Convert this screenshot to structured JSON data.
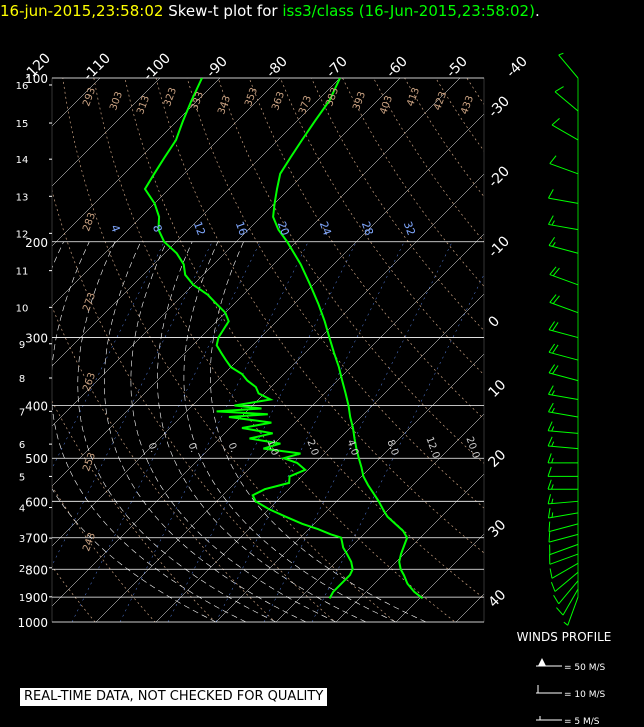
{
  "title": {
    "datetime": "16-jun-2015,23:58:02",
    "plot_label": "Skew-t plot for",
    "source": "iss3/class (16-Jun-2015,23:58:02)",
    "trailing": "."
  },
  "colors": {
    "background": "#000000",
    "title_datetime": "#ffff00",
    "title_source": "#00ff00",
    "temperature_trace": "#00ff00",
    "dewpoint_trace": "#00ff00",
    "wind_barbs": "#00ff00",
    "isobars": "#ffffff",
    "isotherms": "#ffffff",
    "dry_adiabats": "#c8a080",
    "moist_adiabats": "#ffffff",
    "mixing_ratio_lines": "#6090ff",
    "mixing_ratio_labels": "#80a8ff",
    "notice_bg": "#ffffff",
    "notice_fg": "#000000"
  },
  "notice": "REAL-TIME DATA, NOT CHECKED FOR QUALITY",
  "winds_legend": {
    "title": "WINDS PROFILE",
    "entries": [
      {
        "label": "= 50 M/S",
        "icon": "pennant-barb-icon"
      },
      {
        "label": "= 10 M/S",
        "icon": "full-barb-icon"
      },
      {
        "label": "= 5 M/S",
        "icon": "half-barb-icon"
      }
    ]
  },
  "chart_data": {
    "type": "line",
    "title": "",
    "xlabel": "",
    "ylabel": "",
    "y_scale": "log-pressure",
    "ylim": [
      1000,
      100
    ],
    "skew_deg": 45,
    "pressure_levels": [
      100,
      200,
      300,
      400,
      500,
      600,
      700,
      800,
      900,
      1000
    ],
    "pressure_labels": [
      "100",
      "200",
      "300",
      "400",
      "500",
      "600",
      "700",
      "800",
      "900",
      "1000"
    ],
    "height_ticks_km": [
      "16",
      "15",
      "14",
      "13",
      "12",
      "11",
      "10",
      "9",
      "8",
      "7",
      "6",
      "5",
      "4",
      "3",
      "2",
      "1"
    ],
    "height_tick_pressures": [
      103,
      121,
      141,
      165,
      193,
      226,
      264,
      308,
      356,
      410,
      471,
      540,
      616,
      701,
      795,
      899
    ],
    "top_temperature_labels": [
      "-120",
      "-110",
      "-100",
      "-90",
      "-80",
      "-70",
      "-60",
      "-50",
      "-40"
    ],
    "top_temperature_values": [
      -120,
      -110,
      -100,
      -90,
      -80,
      -70,
      -60,
      -50,
      -40
    ],
    "right_temperature_labels": [
      "-30",
      "-20",
      "-10",
      "0",
      "10",
      "20",
      "30",
      "40"
    ],
    "right_temperature_values": [
      -30,
      -20,
      -10,
      0,
      10,
      20,
      30,
      40
    ],
    "dry_adiabat_labels": [
      "293",
      "303",
      "313",
      "323",
      "333",
      "343",
      "353",
      "363",
      "373",
      "383",
      "393",
      "403",
      "413",
      "423",
      "433",
      "283",
      "273",
      "263",
      "253",
      "243"
    ],
    "mixing_ratio_labels": [
      "4",
      "8",
      "12",
      "16",
      "20",
      "24",
      "28",
      "32"
    ],
    "moist_adiabat_labels": [
      "0.",
      "0.",
      "0.",
      "1.0",
      "2.0",
      "4.0",
      "8.0",
      "12.0",
      "20.0"
    ],
    "series": [
      {
        "name": "",
        "role": "temperature",
        "points": [
          [
            905,
            30.5
          ],
          [
            880,
            28
          ],
          [
            850,
            25.5
          ],
          [
            820,
            23.5
          ],
          [
            800,
            22
          ],
          [
            775,
            20.5
          ],
          [
            750,
            19.5
          ],
          [
            720,
            18.5
          ],
          [
            700,
            17.8
          ],
          [
            680,
            16
          ],
          [
            660,
            13.5
          ],
          [
            640,
            11
          ],
          [
            620,
            9
          ],
          [
            600,
            7
          ],
          [
            580,
            4.8
          ],
          [
            560,
            2.5
          ],
          [
            540,
            0.3
          ],
          [
            520,
            -1.5
          ],
          [
            500,
            -3.5
          ],
          [
            480,
            -5.5
          ],
          [
            460,
            -7.5
          ],
          [
            440,
            -9.5
          ],
          [
            420,
            -11.8
          ],
          [
            400,
            -14
          ],
          [
            380,
            -16.5
          ],
          [
            360,
            -19.2
          ],
          [
            340,
            -22
          ],
          [
            320,
            -25.2
          ],
          [
            300,
            -28.5
          ],
          [
            280,
            -32
          ],
          [
            260,
            -36
          ],
          [
            240,
            -40.5
          ],
          [
            220,
            -45.5
          ],
          [
            200,
            -51.5
          ],
          [
            190,
            -55
          ],
          [
            180,
            -58
          ],
          [
            170,
            -60
          ],
          [
            160,
            -62
          ],
          [
            150,
            -64
          ],
          [
            140,
            -65
          ],
          [
            130,
            -66
          ],
          [
            120,
            -67
          ],
          [
            110,
            -68
          ],
          [
            100,
            -70
          ]
        ]
      },
      {
        "name": "",
        "role": "dewpoint",
        "points": [
          [
            905,
            15
          ],
          [
            880,
            14.5
          ],
          [
            850,
            14.5
          ],
          [
            820,
            14.5
          ],
          [
            800,
            14
          ],
          [
            775,
            12.5
          ],
          [
            750,
            10.5
          ],
          [
            730,
            8.8
          ],
          [
            710,
            7.5
          ],
          [
            700,
            6.8
          ],
          [
            690,
            4.5
          ],
          [
            675,
            1.5
          ],
          [
            660,
            -2
          ],
          [
            640,
            -6
          ],
          [
            620,
            -10
          ],
          [
            600,
            -13.5
          ],
          [
            585,
            -15
          ],
          [
            570,
            -14
          ],
          [
            555,
            -11
          ],
          [
            540,
            -12
          ],
          [
            525,
            -10.5
          ],
          [
            510,
            -13
          ],
          [
            500,
            -16
          ],
          [
            490,
            -14
          ],
          [
            480,
            -21
          ],
          [
            470,
            -19
          ],
          [
            460,
            -25
          ],
          [
            450,
            -22
          ],
          [
            440,
            -28
          ],
          [
            430,
            -24
          ],
          [
            420,
            -32
          ],
          [
            415,
            -26
          ],
          [
            410,
            -35
          ],
          [
            405,
            -28
          ],
          [
            400,
            -33
          ],
          [
            390,
            -28
          ],
          [
            380,
            -31
          ],
          [
            370,
            -32.5
          ],
          [
            360,
            -35
          ],
          [
            350,
            -37
          ],
          [
            340,
            -40
          ],
          [
            330,
            -42
          ],
          [
            320,
            -44
          ],
          [
            310,
            -46
          ],
          [
            300,
            -47
          ],
          [
            290,
            -47.5
          ],
          [
            280,
            -48
          ],
          [
            270,
            -50
          ],
          [
            260,
            -53
          ],
          [
            250,
            -56
          ],
          [
            240,
            -60
          ],
          [
            230,
            -63
          ],
          [
            220,
            -65
          ],
          [
            210,
            -68
          ],
          [
            200,
            -72
          ],
          [
            190,
            -75
          ],
          [
            180,
            -77
          ],
          [
            170,
            -80
          ],
          [
            160,
            -84
          ],
          [
            150,
            -85
          ],
          [
            140,
            -86
          ],
          [
            130,
            -87
          ],
          [
            120,
            -89
          ],
          [
            110,
            -91
          ],
          [
            100,
            -93
          ]
        ]
      }
    ],
    "winds": [
      {
        "p": 900,
        "spd_ms": 6,
        "dir_deg": 200
      },
      {
        "p": 870,
        "spd_ms": 12,
        "dir_deg": 210
      },
      {
        "p": 840,
        "spd_ms": 11,
        "dir_deg": 220
      },
      {
        "p": 810,
        "spd_ms": 10,
        "dir_deg": 230
      },
      {
        "p": 780,
        "spd_ms": 10,
        "dir_deg": 240
      },
      {
        "p": 750,
        "spd_ms": 13,
        "dir_deg": 250
      },
      {
        "p": 720,
        "spd_ms": 12,
        "dir_deg": 250
      },
      {
        "p": 690,
        "spd_ms": 13,
        "dir_deg": 255
      },
      {
        "p": 660,
        "spd_ms": 12,
        "dir_deg": 255
      },
      {
        "p": 630,
        "spd_ms": 15,
        "dir_deg": 260
      },
      {
        "p": 600,
        "spd_ms": 16,
        "dir_deg": 265
      },
      {
        "p": 570,
        "spd_ms": 15,
        "dir_deg": 270
      },
      {
        "p": 540,
        "spd_ms": 14,
        "dir_deg": 270
      },
      {
        "p": 510,
        "spd_ms": 16,
        "dir_deg": 270
      },
      {
        "p": 480,
        "spd_ms": 17,
        "dir_deg": 275
      },
      {
        "p": 450,
        "spd_ms": 16,
        "dir_deg": 275
      },
      {
        "p": 420,
        "spd_ms": 18,
        "dir_deg": 280
      },
      {
        "p": 390,
        "spd_ms": 17,
        "dir_deg": 280
      },
      {
        "p": 360,
        "spd_ms": 20,
        "dir_deg": 285
      },
      {
        "p": 330,
        "spd_ms": 21,
        "dir_deg": 285
      },
      {
        "p": 300,
        "spd_ms": 20,
        "dir_deg": 285
      },
      {
        "p": 270,
        "spd_ms": 22,
        "dir_deg": 290
      },
      {
        "p": 240,
        "spd_ms": 21,
        "dir_deg": 290
      },
      {
        "p": 210,
        "spd_ms": 18,
        "dir_deg": 285
      },
      {
        "p": 190,
        "spd_ms": 16,
        "dir_deg": 280
      },
      {
        "p": 170,
        "spd_ms": 14,
        "dir_deg": 280
      },
      {
        "p": 150,
        "spd_ms": 12,
        "dir_deg": 290
      },
      {
        "p": 130,
        "spd_ms": 10,
        "dir_deg": 300
      },
      {
        "p": 115,
        "spd_ms": 11,
        "dir_deg": 310
      },
      {
        "p": 100,
        "spd_ms": 9,
        "dir_deg": 320
      }
    ]
  }
}
